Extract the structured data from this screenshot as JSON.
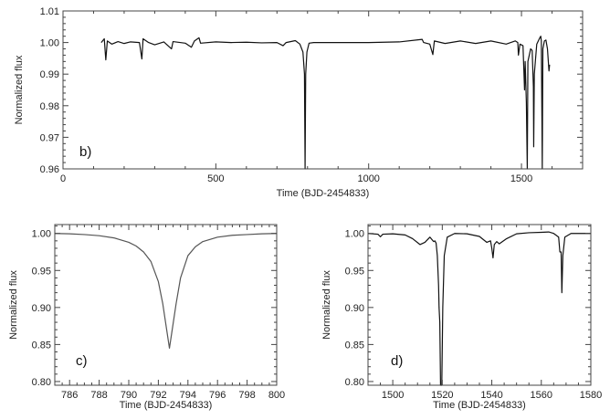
{
  "chart_data": [
    {
      "id": "b",
      "type": "line",
      "panel_label": "b)",
      "xlabel": "Time (BJD-2454833)",
      "ylabel": "Normalized flux",
      "xlim": [
        0,
        1700
      ],
      "ylim": [
        0.96,
        1.01
      ],
      "xticks": [
        0,
        500,
        1000,
        1500
      ],
      "xtick_labels": [
        "0",
        "500",
        "1000",
        "1500"
      ],
      "yticks": [
        0.96,
        0.97,
        0.98,
        0.99,
        1.0,
        1.01
      ],
      "ytick_labels": [
        "0.96",
        "0.97",
        "0.98",
        "0.99",
        "1.00",
        "1.01"
      ],
      "grid": false,
      "line_color": "#111111",
      "points": [
        [
          125,
          1.0
        ],
        [
          135,
          1.0012
        ],
        [
          140,
          0.9945
        ],
        [
          145,
          1.0005
        ],
        [
          160,
          0.9995
        ],
        [
          180,
          1.0003
        ],
        [
          200,
          0.9997
        ],
        [
          220,
          1.0002
        ],
        [
          250,
          1.0
        ],
        [
          258,
          0.9948
        ],
        [
          262,
          1.0012
        ],
        [
          280,
          1.0
        ],
        [
          300,
          0.9993
        ],
        [
          330,
          1.0002
        ],
        [
          355,
          0.998
        ],
        [
          360,
          1.0003
        ],
        [
          400,
          0.9998
        ],
        [
          420,
          0.9985
        ],
        [
          430,
          1.0005
        ],
        [
          445,
          1.0015
        ],
        [
          450,
          0.9998
        ],
        [
          500,
          1.0002
        ],
        [
          550,
          1.0
        ],
        [
          600,
          1.0001
        ],
        [
          650,
          0.9999
        ],
        [
          700,
          1.0
        ],
        [
          720,
          0.999
        ],
        [
          730,
          1.0
        ],
        [
          760,
          1.0006
        ],
        [
          775,
          0.9995
        ],
        [
          785,
          0.997
        ],
        [
          790,
          0.99
        ],
        [
          792,
          0.958
        ],
        [
          794,
          0.99
        ],
        [
          798,
          0.997
        ],
        [
          805,
          0.9998
        ],
        [
          820,
          1.0
        ],
        [
          900,
          1.0
        ],
        [
          1000,
          1.0
        ],
        [
          1100,
          1.0002
        ],
        [
          1175,
          1.001
        ],
        [
          1180,
          1.0
        ],
        [
          1200,
          0.9995
        ],
        [
          1210,
          0.9962
        ],
        [
          1215,
          1.0005
        ],
        [
          1250,
          0.9997
        ],
        [
          1300,
          1.0005
        ],
        [
          1350,
          0.9997
        ],
        [
          1400,
          1.0005
        ],
        [
          1450,
          0.9995
        ],
        [
          1480,
          1.0005
        ],
        [
          1488,
          1.0
        ],
        [
          1490,
          0.996
        ],
        [
          1495,
          0.9995
        ],
        [
          1505,
          0.999
        ],
        [
          1510,
          0.985
        ],
        [
          1512,
          0.994
        ],
        [
          1516,
          0.981
        ],
        [
          1519,
          0.958
        ],
        [
          1521,
          0.994
        ],
        [
          1530,
          0.998
        ],
        [
          1535,
          0.9975
        ],
        [
          1539,
          0.986
        ],
        [
          1540,
          0.967
        ],
        [
          1542,
          0.99
        ],
        [
          1550,
          0.9995
        ],
        [
          1560,
          1.0015
        ],
        [
          1563,
          1.002
        ],
        [
          1565,
          1.0005
        ],
        [
          1567,
          0.975
        ],
        [
          1568,
          0.958
        ],
        [
          1570,
          0.998
        ],
        [
          1575,
          1.0005
        ],
        [
          1580,
          1.0008
        ],
        [
          1585,
          0.998
        ],
        [
          1590,
          0.991
        ],
        [
          1592,
          0.993
        ]
      ]
    },
    {
      "id": "c",
      "type": "line",
      "panel_label": "c)",
      "xlabel": "Time (BJD-2454833)",
      "ylabel": "Normalized flux",
      "xlim": [
        785,
        800
      ],
      "ylim": [
        0.795,
        1.012
      ],
      "xticks": [
        786,
        788,
        790,
        792,
        794,
        796,
        798,
        800
      ],
      "xtick_labels": [
        "786",
        "788",
        "790",
        "792",
        "794",
        "796",
        "798",
        "800"
      ],
      "yticks": [
        0.8,
        0.85,
        0.9,
        0.95,
        1.0
      ],
      "ytick_labels": [
        "0.80",
        "0.85",
        "0.90",
        "0.95",
        "1.00"
      ],
      "grid": false,
      "line_color": "#555555",
      "points": [
        [
          785,
          1.0
        ],
        [
          786,
          0.9995
        ],
        [
          787,
          0.9985
        ],
        [
          788,
          0.997
        ],
        [
          789,
          0.994
        ],
        [
          790,
          0.988
        ],
        [
          790.5,
          0.983
        ],
        [
          791,
          0.975
        ],
        [
          791.5,
          0.962
        ],
        [
          792,
          0.935
        ],
        [
          792.3,
          0.905
        ],
        [
          792.6,
          0.865
        ],
        [
          792.75,
          0.845
        ],
        [
          792.9,
          0.865
        ],
        [
          793.2,
          0.905
        ],
        [
          793.5,
          0.94
        ],
        [
          794,
          0.97
        ],
        [
          794.5,
          0.982
        ],
        [
          795,
          0.989
        ],
        [
          796,
          0.995
        ],
        [
          797,
          0.9975
        ],
        [
          798,
          0.9985
        ],
        [
          799,
          0.9995
        ],
        [
          800,
          1.0
        ]
      ]
    },
    {
      "id": "d",
      "type": "line",
      "panel_label": "d)",
      "xlabel": "Time (BJD-2454833)",
      "ylabel": "Normalized flux",
      "xlim": [
        1490,
        1580
      ],
      "ylim": [
        0.795,
        1.012
      ],
      "xticks": [
        1500,
        1520,
        1540,
        1560,
        1580
      ],
      "xtick_labels": [
        "1500",
        "1520",
        "1540",
        "1560",
        "1580"
      ],
      "yticks": [
        0.8,
        0.85,
        0.9,
        0.95,
        1.0
      ],
      "ytick_labels": [
        "0.80",
        "0.85",
        "0.90",
        "0.95",
        "1.00"
      ],
      "grid": false,
      "line_color": "#111111",
      "points": [
        [
          1490,
          1.0
        ],
        [
          1494,
          0.999
        ],
        [
          1495,
          0.9955
        ],
        [
          1496,
          0.999
        ],
        [
          1500,
          0.9995
        ],
        [
          1505,
          0.998
        ],
        [
          1508,
          0.993
        ],
        [
          1511,
          0.985
        ],
        [
          1513,
          0.988
        ],
        [
          1515,
          0.995
        ],
        [
          1516.5,
          0.989
        ],
        [
          1517,
          0.99
        ],
        [
          1517.5,
          0.987
        ],
        [
          1518,
          0.97
        ],
        [
          1518.5,
          0.93
        ],
        [
          1518.7,
          0.9
        ],
        [
          1519,
          0.88
        ],
        [
          1519.3,
          0.79
        ],
        [
          1519.8,
          0.79
        ],
        [
          1520.2,
          0.9
        ],
        [
          1520.8,
          0.97
        ],
        [
          1522,
          0.995
        ],
        [
          1525,
          1.0
        ],
        [
          1530,
          0.9995
        ],
        [
          1535,
          0.996
        ],
        [
          1538,
          0.988
        ],
        [
          1539.5,
          0.99
        ],
        [
          1540,
          0.98
        ],
        [
          1540.5,
          0.967
        ],
        [
          1541,
          0.985
        ],
        [
          1542,
          0.989
        ],
        [
          1543,
          0.986
        ],
        [
          1546,
          0.993
        ],
        [
          1550,
          0.9995
        ],
        [
          1555,
          1.001
        ],
        [
          1560,
          1.0015
        ],
        [
          1563,
          1.002
        ],
        [
          1565,
          1.0
        ],
        [
          1567,
          0.995
        ],
        [
          1567.5,
          0.975
        ],
        [
          1568,
          0.975
        ],
        [
          1568.3,
          0.92
        ],
        [
          1568.7,
          0.97
        ],
        [
          1569.5,
          0.995
        ],
        [
          1572,
          1.0
        ],
        [
          1580,
          1.0
        ]
      ]
    }
  ]
}
